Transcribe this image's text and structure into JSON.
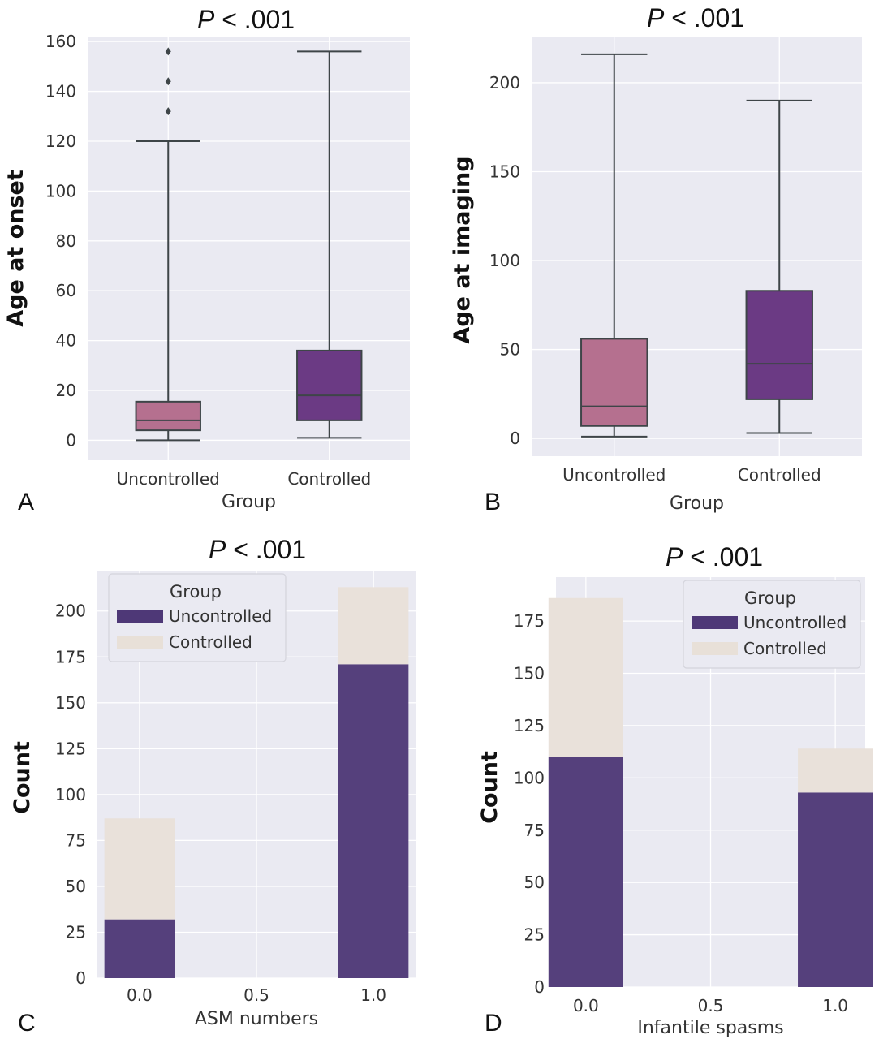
{
  "chart_data": [
    {
      "panel": "A",
      "type": "box",
      "title": "P < .001",
      "title_prefix": "P",
      "title_rest": " < .001",
      "xlabel": "Group",
      "ylabel": "Age at onset",
      "categories": [
        "Uncontrolled",
        "Controlled"
      ],
      "ylim": [
        -8,
        162
      ],
      "yticks": [
        "0",
        "20",
        "40",
        "60",
        "80",
        "100",
        "120",
        "140",
        "160"
      ],
      "grid": true,
      "colors": [
        "#b5708f",
        "#6b3a84"
      ],
      "boxes": [
        {
          "name": "Uncontrolled",
          "min": 0,
          "q1": 4,
          "median": 8,
          "q3": 15.5,
          "max": 120,
          "outliers": [
            132,
            144,
            156
          ]
        },
        {
          "name": "Controlled",
          "min": 1,
          "q1": 8,
          "median": 18,
          "q3": 36,
          "max": 156,
          "outliers": []
        }
      ]
    },
    {
      "panel": "B",
      "type": "box",
      "title": "P < .001",
      "title_prefix": "P",
      "title_rest": " < .001",
      "xlabel": "Group",
      "ylabel": "Age at imaging",
      "categories": [
        "Uncontrolled",
        "Controlled"
      ],
      "ylim": [
        -10,
        226
      ],
      "yticks": [
        "0",
        "50",
        "100",
        "150",
        "200"
      ],
      "grid": true,
      "colors": [
        "#b5708f",
        "#6b3a84"
      ],
      "boxes": [
        {
          "name": "Uncontrolled",
          "min": 1,
          "q1": 7,
          "median": 18,
          "q3": 56,
          "max": 216,
          "outliers": []
        },
        {
          "name": "Controlled",
          "min": 3,
          "q1": 22,
          "median": 42,
          "q3": 83,
          "max": 190,
          "outliers": []
        }
      ]
    },
    {
      "panel": "C",
      "type": "bar",
      "stacked": true,
      "title": "P < .001",
      "title_prefix": "P",
      "title_rest": " < .001",
      "xlabel": "ASM numbers",
      "ylabel": "Count",
      "categories": [
        "0.0",
        "1.0"
      ],
      "x": [
        0.0,
        1.0
      ],
      "xlim": [
        -0.18,
        1.18
      ],
      "xticks": [
        "0.0",
        "0.5",
        "1.0"
      ],
      "ylim": [
        0,
        222
      ],
      "yticks": [
        "0",
        "25",
        "50",
        "75",
        "100",
        "125",
        "150",
        "175",
        "200"
      ],
      "grid": true,
      "legend": {
        "title": "Group",
        "position": "upper-left"
      },
      "series": [
        {
          "name": "Uncontrolled",
          "values": [
            32,
            171
          ],
          "color": "#4e3877"
        },
        {
          "name": "Controlled",
          "values": [
            55,
            42
          ],
          "color": "#e8e0d8"
        }
      ]
    },
    {
      "panel": "D",
      "type": "bar",
      "stacked": true,
      "title": "P < .001",
      "title_prefix": "P",
      "title_rest": " < .001",
      "xlabel": "Infantile spasms",
      "ylabel": "Count",
      "categories": [
        "0.0",
        "1.0"
      ],
      "x": [
        0.0,
        1.0
      ],
      "xlim": [
        -0.12,
        1.12
      ],
      "xticks": [
        "0.0",
        "0.5",
        "1.0"
      ],
      "ylim": [
        0,
        196
      ],
      "yticks": [
        "0",
        "25",
        "50",
        "75",
        "100",
        "125",
        "150",
        "175"
      ],
      "grid": true,
      "legend": {
        "title": "Group",
        "position": "upper-right"
      },
      "series": [
        {
          "name": "Uncontrolled",
          "values": [
            110,
            93
          ],
          "color": "#4e3877"
        },
        {
          "name": "Controlled",
          "values": [
            76,
            21
          ],
          "color": "#e8e0d8"
        }
      ]
    }
  ]
}
